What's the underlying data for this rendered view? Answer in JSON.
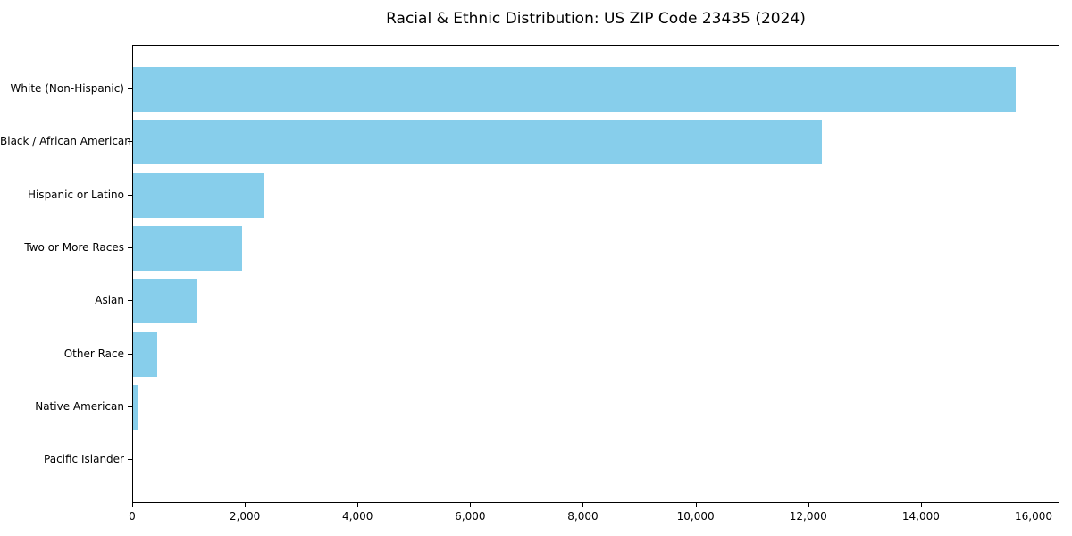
{
  "title": "Racial & Ethnic Distribution: US ZIP Code 23435 (2024)",
  "chart_data": {
    "type": "bar",
    "orientation": "horizontal",
    "title": "Racial & Ethnic Distribution: US ZIP Code 23435 (2024)",
    "xlabel": "",
    "ylabel": "",
    "categories": [
      "White (Non-Hispanic)",
      "Black / African American",
      "Hispanic or Latino",
      "Two or More Races",
      "Asian",
      "Other Race",
      "Native American",
      "Pacific Islander"
    ],
    "values": [
      15670,
      12220,
      2310,
      1930,
      1140,
      430,
      80,
      0
    ],
    "xlim": [
      0,
      16460
    ],
    "x_ticks": [
      0,
      2000,
      4000,
      6000,
      8000,
      10000,
      12000,
      14000,
      16000
    ],
    "x_tick_labels": [
      "0",
      "2,000",
      "4,000",
      "6,000",
      "8,000",
      "10,000",
      "12,000",
      "14,000",
      "16,000"
    ],
    "bar_color": "#87CEEB",
    "frame_color": "#000000",
    "grid": false,
    "legend": null
  }
}
